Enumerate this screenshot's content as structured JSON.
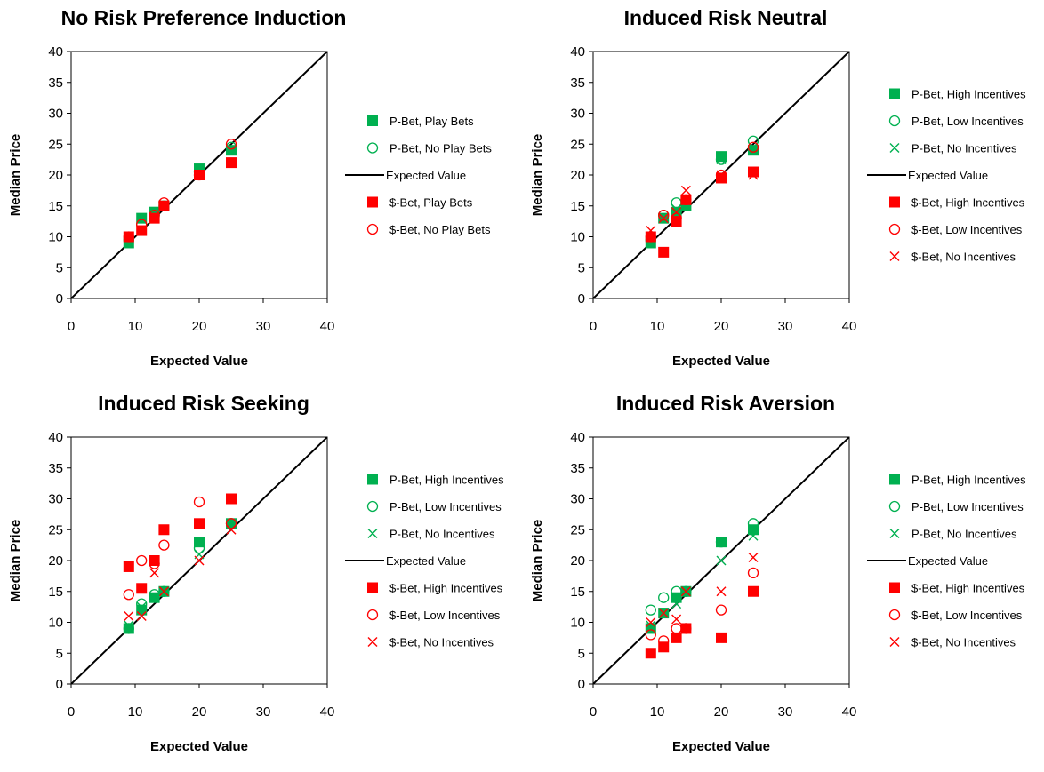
{
  "colors": {
    "green": "#00B050",
    "red": "#FF0000",
    "line": "#000000"
  },
  "chart_data": [
    {
      "type": "scatter",
      "title": "No Risk Preference Induction",
      "xlabel": "Expected Value",
      "ylabel": "Median Price",
      "xlim": [
        0,
        40
      ],
      "ylim": [
        0,
        40
      ],
      "xticks": [
        "0",
        "10",
        "20",
        "30",
        "40"
      ],
      "yticks": [
        "0",
        "5",
        "10",
        "15",
        "20",
        "25",
        "30",
        "35",
        "40"
      ],
      "legend_position": "right",
      "series": [
        {
          "name": "P-Bet, Play Bets",
          "marker": "square",
          "color": "#00B050",
          "points": [
            [
              9,
              9
            ],
            [
              11,
              13
            ],
            [
              13,
              14
            ],
            [
              14.5,
              15
            ],
            [
              20,
              21
            ],
            [
              25,
              24
            ]
          ]
        },
        {
          "name": "P-Bet, No Play Bets",
          "marker": "circle",
          "color": "#00B050",
          "points": [
            [
              9,
              9.5
            ],
            [
              11,
              12
            ],
            [
              13,
              13.5
            ],
            [
              14.5,
              15
            ],
            [
              20,
              20.5
            ],
            [
              25,
              24.5
            ]
          ]
        },
        {
          "name": "Expected Value",
          "marker": "line",
          "color": "#000000",
          "points": [
            [
              0,
              0
            ],
            [
              40,
              40
            ]
          ]
        },
        {
          "name": "$-Bet, Play Bets",
          "marker": "square",
          "color": "#FF0000",
          "points": [
            [
              9,
              10
            ],
            [
              11,
              11
            ],
            [
              13,
              13
            ],
            [
              14.5,
              15
            ],
            [
              20,
              20
            ],
            [
              25,
              22
            ]
          ]
        },
        {
          "name": "$-Bet, No Play Bets",
          "marker": "circle",
          "color": "#FF0000",
          "points": [
            [
              9,
              10
            ],
            [
              11,
              12
            ],
            [
              13,
              13.5
            ],
            [
              14.5,
              15.5
            ],
            [
              20,
              20
            ],
            [
              25,
              25
            ]
          ]
        }
      ]
    },
    {
      "type": "scatter",
      "title": "Induced Risk Neutral",
      "xlabel": "Expected Value",
      "ylabel": "Median Price",
      "xlim": [
        0,
        40
      ],
      "ylim": [
        0,
        40
      ],
      "xticks": [
        "0",
        "10",
        "20",
        "30",
        "40"
      ],
      "yticks": [
        "0",
        "5",
        "10",
        "15",
        "20",
        "25",
        "30",
        "35",
        "40"
      ],
      "legend_position": "right",
      "series": [
        {
          "name": "P-Bet, High Incentives",
          "marker": "square",
          "color": "#00B050",
          "points": [
            [
              9,
              9
            ],
            [
              11,
              13
            ],
            [
              13,
              14
            ],
            [
              14.5,
              15
            ],
            [
              20,
              23
            ],
            [
              25,
              24
            ]
          ]
        },
        {
          "name": "P-Bet, Low Incentives",
          "marker": "circle",
          "color": "#00B050",
          "points": [
            [
              9,
              9.5
            ],
            [
              11,
              13.5
            ],
            [
              13,
              15.5
            ],
            [
              14.5,
              15.5
            ],
            [
              20,
              22.5
            ],
            [
              25,
              25.5
            ]
          ]
        },
        {
          "name": "P-Bet, No Incentives",
          "marker": "x",
          "color": "#00B050",
          "points": [
            [
              9,
              9
            ],
            [
              11,
              13
            ],
            [
              13,
              14.5
            ],
            [
              14.5,
              15
            ],
            [
              20,
              22.5
            ],
            [
              25,
              24.5
            ]
          ]
        },
        {
          "name": "Expected Value",
          "marker": "line",
          "color": "#000000",
          "points": [
            [
              0,
              0
            ],
            [
              40,
              40
            ]
          ]
        },
        {
          "name": "$-Bet, High Incentives",
          "marker": "square",
          "color": "#FF0000",
          "points": [
            [
              9,
              10
            ],
            [
              11,
              7.5
            ],
            [
              13,
              12.5
            ],
            [
              14.5,
              16
            ],
            [
              20,
              19.5
            ],
            [
              25,
              20.5
            ]
          ]
        },
        {
          "name": "$-Bet, Low Incentives",
          "marker": "circle",
          "color": "#FF0000",
          "points": [
            [
              9,
              10
            ],
            [
              11,
              13.5
            ],
            [
              13,
              13
            ],
            [
              14.5,
              16
            ],
            [
              20,
              20
            ],
            [
              25,
              24.5
            ]
          ]
        },
        {
          "name": "$-Bet, No Incentives",
          "marker": "x",
          "color": "#FF0000",
          "points": [
            [
              9,
              11
            ],
            [
              11,
              13
            ],
            [
              13,
              14
            ],
            [
              14.5,
              17.5
            ],
            [
              20,
              20
            ],
            [
              25,
              20
            ]
          ]
        }
      ]
    },
    {
      "type": "scatter",
      "title": "Induced Risk Seeking",
      "xlabel": "Expected Value",
      "ylabel": "Median Price",
      "xlim": [
        0,
        40
      ],
      "ylim": [
        0,
        40
      ],
      "xticks": [
        "0",
        "10",
        "20",
        "30",
        "40"
      ],
      "yticks": [
        "0",
        "5",
        "10",
        "15",
        "20",
        "25",
        "30",
        "35",
        "40"
      ],
      "legend_position": "right",
      "series": [
        {
          "name": "P-Bet, High Incentives",
          "marker": "square",
          "color": "#00B050",
          "points": [
            [
              9,
              9
            ],
            [
              11,
              12
            ],
            [
              13,
              14
            ],
            [
              14.5,
              15
            ],
            [
              20,
              23
            ],
            [
              25,
              26
            ]
          ]
        },
        {
          "name": "P-Bet, Low Incentives",
          "marker": "circle",
          "color": "#00B050",
          "points": [
            [
              9,
              9
            ],
            [
              11,
              13
            ],
            [
              13,
              14.5
            ],
            [
              14.5,
              15
            ],
            [
              20,
              22
            ],
            [
              25,
              26
            ]
          ]
        },
        {
          "name": "P-Bet, No Incentives",
          "marker": "x",
          "color": "#00B050",
          "points": [
            [
              9,
              9.5
            ],
            [
              11,
              12.5
            ],
            [
              13,
              14
            ],
            [
              14.5,
              15
            ],
            [
              20,
              21
            ],
            [
              25,
              26
            ]
          ]
        },
        {
          "name": "Expected Value",
          "marker": "line",
          "color": "#000000",
          "points": [
            [
              0,
              0
            ],
            [
              40,
              40
            ]
          ]
        },
        {
          "name": "$-Bet, High Incentives",
          "marker": "square",
          "color": "#FF0000",
          "points": [
            [
              9,
              19
            ],
            [
              11,
              15.5
            ],
            [
              13,
              20
            ],
            [
              14.5,
              25
            ],
            [
              20,
              26
            ],
            [
              25,
              30
            ]
          ]
        },
        {
          "name": "$-Bet, Low Incentives",
          "marker": "circle",
          "color": "#FF0000",
          "points": [
            [
              9,
              14.5
            ],
            [
              11,
              20
            ],
            [
              13,
              19.5
            ],
            [
              14.5,
              22.5
            ],
            [
              20,
              29.5
            ],
            [
              25,
              26
            ]
          ]
        },
        {
          "name": "$-Bet, No Incentives",
          "marker": "x",
          "color": "#FF0000",
          "points": [
            [
              9,
              11
            ],
            [
              11,
              11
            ],
            [
              13,
              18
            ],
            [
              14.5,
              15
            ],
            [
              20,
              20
            ],
            [
              25,
              25
            ]
          ]
        }
      ]
    },
    {
      "type": "scatter",
      "title": "Induced Risk Aversion",
      "xlabel": "Expected Value",
      "ylabel": "Median Price",
      "xlim": [
        0,
        40
      ],
      "ylim": [
        0,
        40
      ],
      "xticks": [
        "0",
        "10",
        "20",
        "30",
        "40"
      ],
      "yticks": [
        "0",
        "5",
        "10",
        "15",
        "20",
        "25",
        "30",
        "35",
        "40"
      ],
      "legend_position": "right",
      "series": [
        {
          "name": "P-Bet, High Incentives",
          "marker": "square",
          "color": "#00B050",
          "points": [
            [
              9,
              9
            ],
            [
              11,
              11.5
            ],
            [
              13,
              14
            ],
            [
              14.5,
              15
            ],
            [
              20,
              23
            ],
            [
              25,
              25
            ]
          ]
        },
        {
          "name": "P-Bet, Low Incentives",
          "marker": "circle",
          "color": "#00B050",
          "points": [
            [
              9,
              12
            ],
            [
              11,
              14
            ],
            [
              13,
              15
            ],
            [
              14.5,
              15
            ],
            [
              20,
              23
            ],
            [
              25,
              26
            ]
          ]
        },
        {
          "name": "P-Bet, No Incentives",
          "marker": "x",
          "color": "#00B050",
          "points": [
            [
              9,
              9.5
            ],
            [
              11,
              11.5
            ],
            [
              13,
              13
            ],
            [
              14.5,
              15
            ],
            [
              20,
              20
            ],
            [
              25,
              24
            ]
          ]
        },
        {
          "name": "Expected Value",
          "marker": "line",
          "color": "#000000",
          "points": [
            [
              0,
              0
            ],
            [
              40,
              40
            ]
          ]
        },
        {
          "name": "$-Bet, High Incentives",
          "marker": "square",
          "color": "#FF0000",
          "points": [
            [
              9,
              5
            ],
            [
              11,
              6
            ],
            [
              13,
              7.5
            ],
            [
              14.5,
              9
            ],
            [
              20,
              7.5
            ],
            [
              25,
              15
            ]
          ]
        },
        {
          "name": "$-Bet, Low Incentives",
          "marker": "circle",
          "color": "#FF0000",
          "points": [
            [
              9,
              8
            ],
            [
              11,
              7
            ],
            [
              13,
              9
            ],
            [
              14.5,
              9
            ],
            [
              20,
              12
            ],
            [
              25,
              18
            ]
          ]
        },
        {
          "name": "$-Bet, No Incentives",
          "marker": "x",
          "color": "#FF0000",
          "points": [
            [
              9,
              10
            ],
            [
              11,
              11.5
            ],
            [
              13,
              10.5
            ],
            [
              14.5,
              15
            ],
            [
              20,
              15
            ],
            [
              25,
              20.5
            ]
          ]
        }
      ]
    }
  ]
}
